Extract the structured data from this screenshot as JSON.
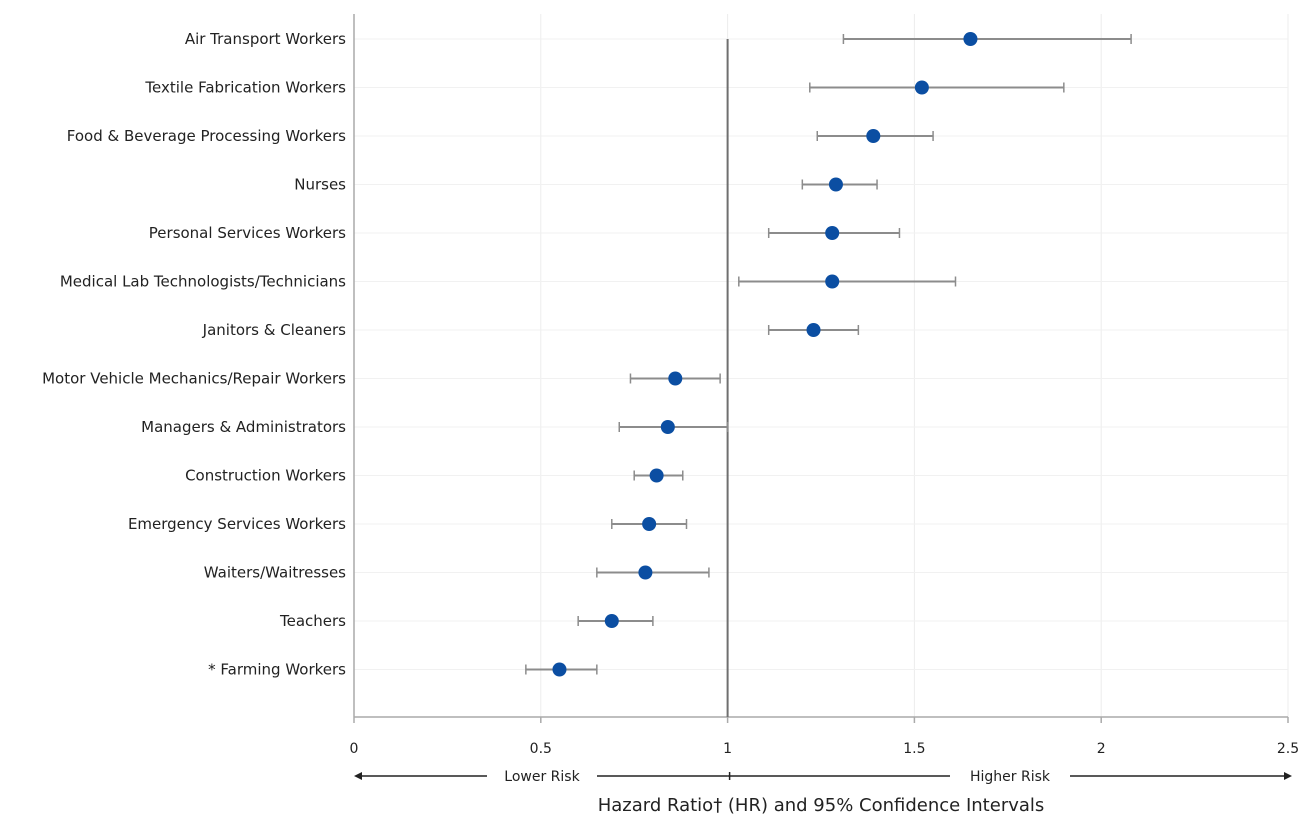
{
  "chart_data": {
    "type": "scatter",
    "title": "",
    "xlabel": "Hazard Ratio† (HR) and 95% Confidence Intervals",
    "ylabel": "",
    "xlim": [
      0,
      2.5
    ],
    "xticks": [
      0,
      0.5,
      1,
      1.5,
      2,
      2.5
    ],
    "xtick_labels": [
      "0",
      "0.5",
      "1",
      "1.5",
      "2",
      "2.5"
    ],
    "reference_line": 1,
    "grid": true,
    "lower_risk_label": "Lower Risk",
    "higher_risk_label": "Higher Risk",
    "point_color": "#0b4ea2",
    "errorbar_color": "#8c8c8c",
    "points": [
      {
        "label": "Air Transport Workers",
        "hr": 1.65,
        "lo": 1.31,
        "hi": 2.08
      },
      {
        "label": "Textile Fabrication Workers",
        "hr": 1.52,
        "lo": 1.22,
        "hi": 1.9
      },
      {
        "label": "Food & Beverage Processing Workers",
        "hr": 1.39,
        "lo": 1.24,
        "hi": 1.55
      },
      {
        "label": "Nurses",
        "hr": 1.29,
        "lo": 1.2,
        "hi": 1.4
      },
      {
        "label": "Personal Services Workers",
        "hr": 1.28,
        "lo": 1.11,
        "hi": 1.46
      },
      {
        "label": "Medical Lab Technologists/Technicians",
        "hr": 1.28,
        "lo": 1.03,
        "hi": 1.61
      },
      {
        "label": "Janitors & Cleaners",
        "hr": 1.23,
        "lo": 1.11,
        "hi": 1.35
      },
      {
        "label": "Motor Vehicle Mechanics/Repair Workers",
        "hr": 0.86,
        "lo": 0.74,
        "hi": 0.98
      },
      {
        "label": "Managers & Administrators",
        "hr": 0.84,
        "lo": 0.71,
        "hi": 1.0
      },
      {
        "label": "Construction Workers",
        "hr": 0.81,
        "lo": 0.75,
        "hi": 0.88
      },
      {
        "label": "Emergency Services Workers",
        "hr": 0.79,
        "lo": 0.69,
        "hi": 0.89
      },
      {
        "label": "Waiters/Waitresses",
        "hr": 0.78,
        "lo": 0.65,
        "hi": 0.95
      },
      {
        "label": "Teachers",
        "hr": 0.69,
        "lo": 0.6,
        "hi": 0.8
      },
      {
        "label": "* Farming Workers",
        "hr": 0.55,
        "lo": 0.46,
        "hi": 0.65
      }
    ]
  }
}
